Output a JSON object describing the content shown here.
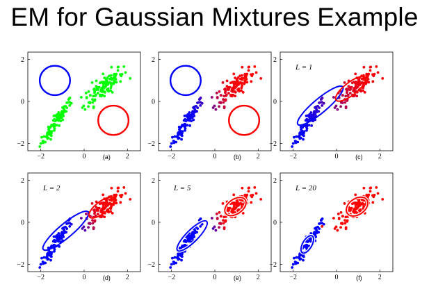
{
  "slide": {
    "title": "EM for Gaussian Mixtures Example"
  },
  "colors": {
    "cluster_a": "#0000ff",
    "cluster_b": "#ff0000",
    "unassigned": "#00ff00"
  },
  "x_tick_labels": [
    "−2",
    "0",
    "2"
  ],
  "y_tick_labels": [
    "2",
    "0",
    "−2"
  ],
  "panels": [
    {
      "label": "(a)",
      "step_label": ""
    },
    {
      "label": "(b)",
      "step_label": ""
    },
    {
      "label": "(c)",
      "step_label": "L = 1"
    },
    {
      "label": "(d)",
      "step_label": "L = 2"
    },
    {
      "label": "(e)",
      "step_label": "L = 5"
    },
    {
      "label": "(f)",
      "step_label": "L = 20"
    }
  ]
}
